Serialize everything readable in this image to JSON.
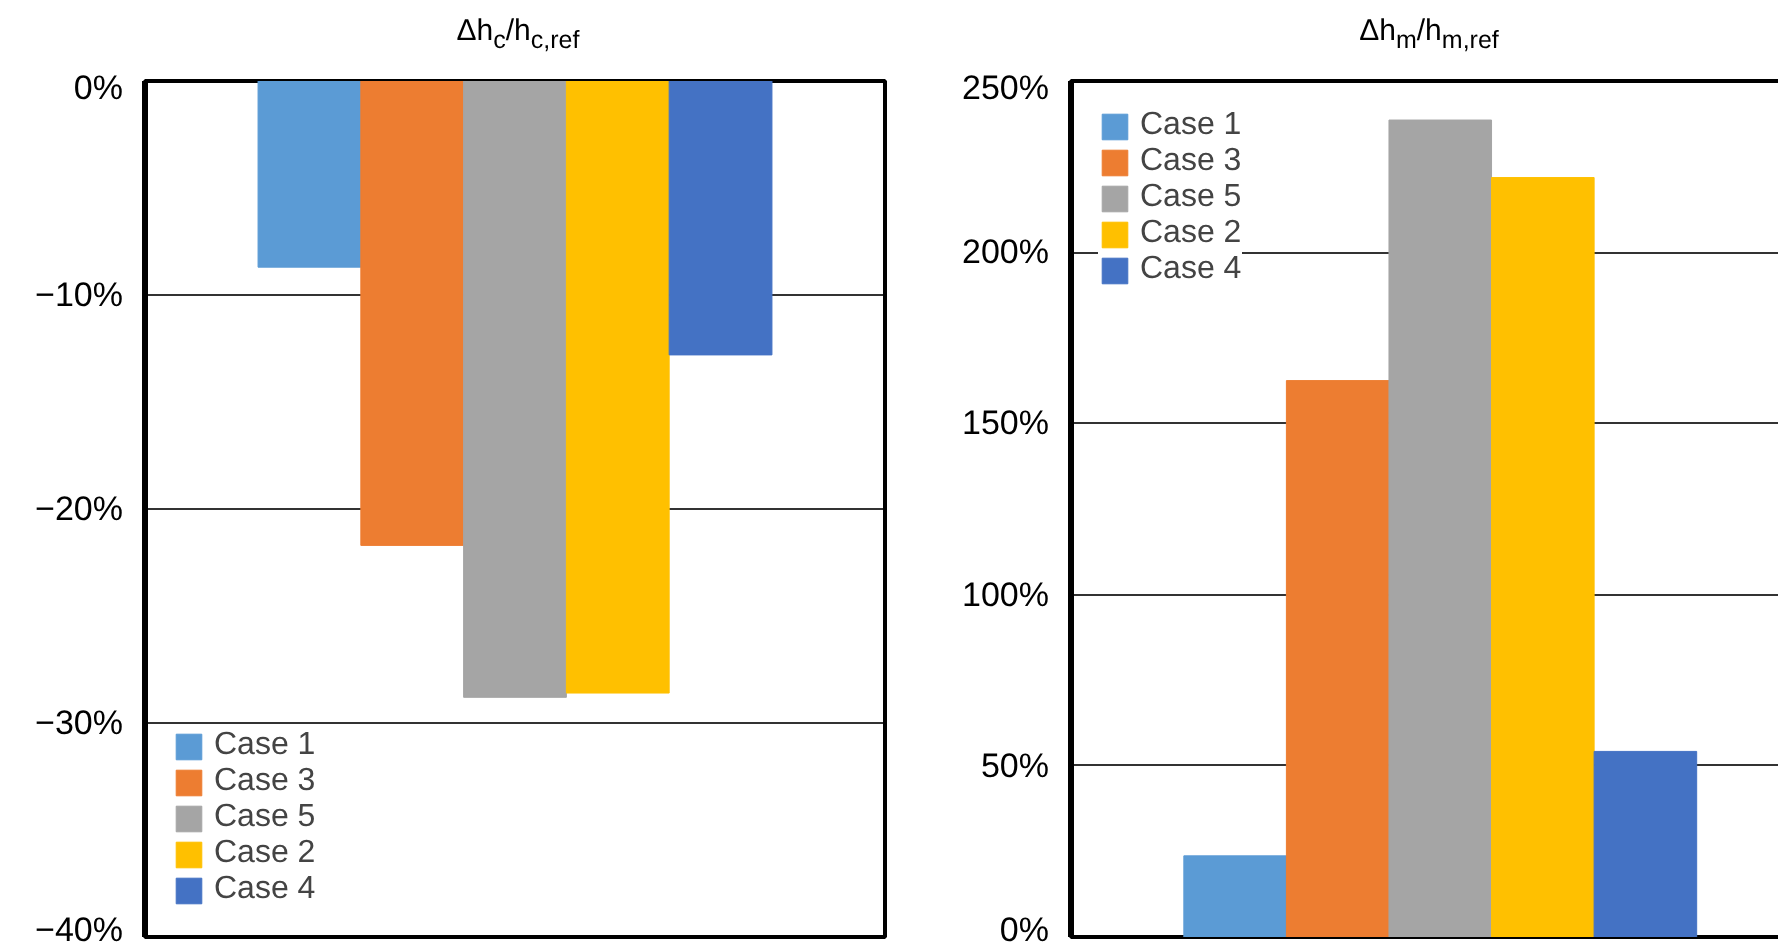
{
  "chart_data": [
    {
      "type": "bar",
      "title": "Δh$_{c}$/h$_{c,ref}$",
      "categories": [
        null
      ],
      "series": [
        {
          "name": "Case 1",
          "color": "#5b9bd5",
          "values": [
            -8.7
          ]
        },
        {
          "name": "Case 3",
          "color": "#ed7d31",
          "values": [
            -21.7
          ]
        },
        {
          "name": "Case 5",
          "color": "#a5a5a5",
          "values": [
            -28.8
          ]
        },
        {
          "name": "Case 2",
          "color": "#ffc000",
          "values": [
            -28.6
          ]
        },
        {
          "name": "Case 4",
          "color": "#4472c4",
          "values": [
            -12.8
          ]
        }
      ],
      "ylim": [
        -40,
        0
      ],
      "yticks": [
        {
          "value": 0,
          "label": "0%"
        },
        {
          "value": -10,
          "label": "−10%"
        },
        {
          "value": -20,
          "label": "−20%"
        },
        {
          "value": -30,
          "label": "−30%"
        },
        {
          "value": -40,
          "label": "−40%"
        }
      ],
      "grid": "y",
      "legend": "bottom left"
    },
    {
      "type": "bar",
      "title": "Δh$_{m}$/h$_{m,ref}$",
      "categories": [
        null
      ],
      "series": [
        {
          "name": "Case 1",
          "color": "#5b9bd5",
          "values": [
            23.7
          ]
        },
        {
          "name": "Case 3",
          "color": "#ed7d31",
          "values": [
            162.5
          ]
        },
        {
          "name": "Case 5",
          "color": "#a5a5a5",
          "values": [
            238.6
          ]
        },
        {
          "name": "Case 2",
          "color": "#ffc000",
          "values": [
            221.8
          ]
        },
        {
          "name": "Case 4",
          "color": "#4472c4",
          "values": [
            54.2
          ]
        }
      ],
      "ylim": [
        0,
        250
      ],
      "yticks": [
        {
          "value": 0,
          "label": "0%"
        },
        {
          "value": 50,
          "label": "50%"
        },
        {
          "value": 100,
          "label": "100%"
        },
        {
          "value": 150,
          "label": "150%"
        },
        {
          "value": 200,
          "label": "200%"
        },
        {
          "value": 250,
          "label": "250%"
        }
      ],
      "grid": "y",
      "legend": "top left"
    }
  ]
}
